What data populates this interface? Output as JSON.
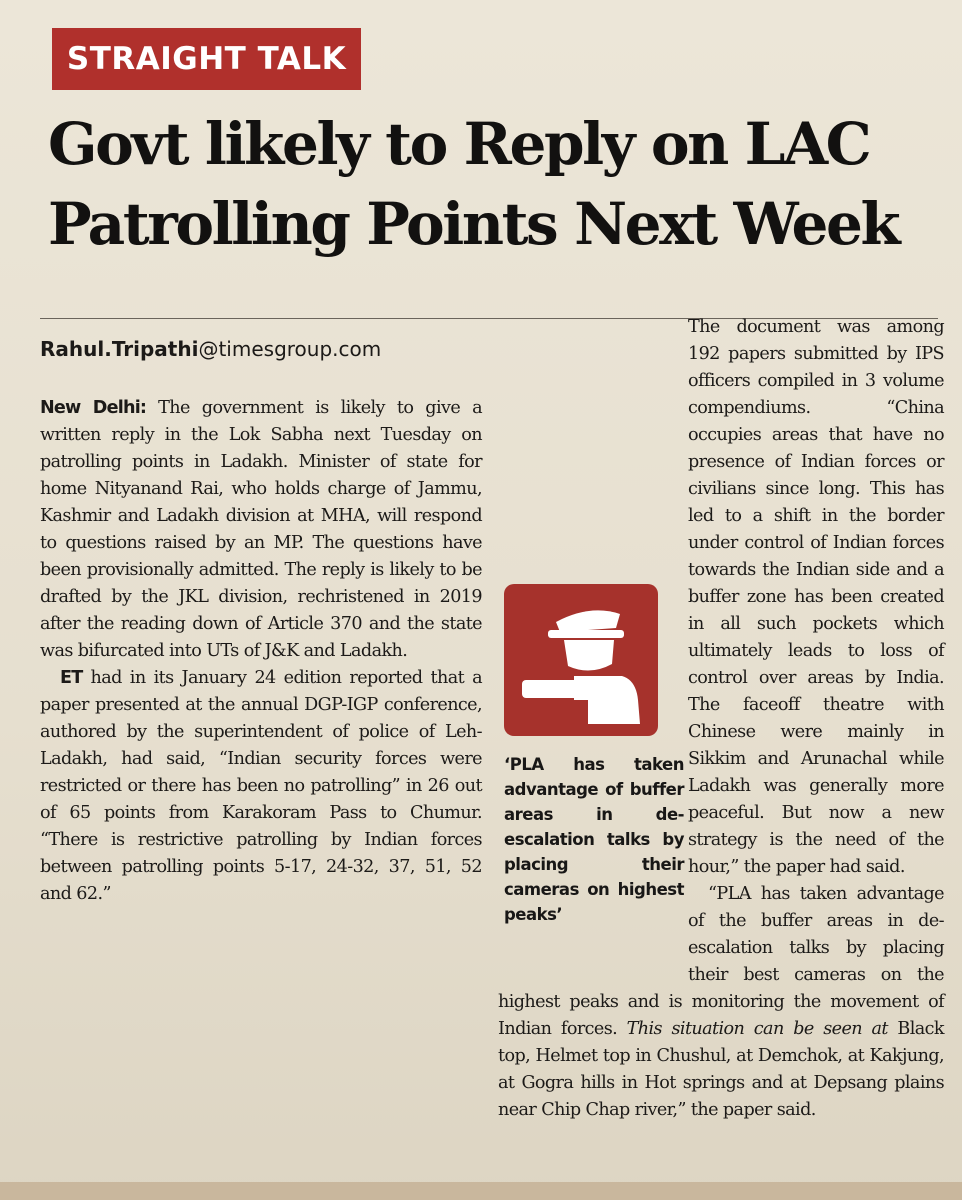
{
  "kicker": "STRAIGHT TALK",
  "headline": {
    "line1": "Govt likely to Reply on LAC",
    "line2": "Patrolling Points Next Week"
  },
  "byline": {
    "name": "Rahul.Tripathi",
    "domain": "@timesgroup.com"
  },
  "article": {
    "dateline": "New Delhi:",
    "p1": "The government is likely to give a written reply in the Lok Sabha next Tuesday on patrolling points in Ladakh. Minister of state for home Nityanand Rai, who holds charge of Jammu, Kashmir and Ladakh division at MHA, will respond to questions raised by an MP. The questions have been provisionally admitted. The reply is likely to be drafted by the JKL division, rechristened in 2019 after the reading down of Article 370 and the state was bifurcated into UTs of J&K and Ladakh.",
    "p2_lead": "ET",
    "p2": " had in its January 24 edition reported that a paper presented at the annual DGP-IGP conference, authored by the superintendent of police of Leh-Ladakh, had said, “Indian security forces were restricted or there has been no patrolling” in 26 out of 65 points from Karakoram Pass to Chumur. “There is restrictive patrolling by Indian forces between patrolling points 5-17, 24-32, 37, 51, 52 and 62.”",
    "p3": "The document was among 192 papers submitted by IPS officers compiled in 3 volume compendiums. “China occupies areas that have no presence of Indian forces or civilians since long. This has led to a shift in the border under control of Indian forces towards the Indian side and a buffer zone has been created in all such pockets which ultimately leads to loss of control over areas by India. The faceoff theatre with Chinese were mainly in Sikkim and Arunachal while Ladakh was generally more peaceful. But now a new strategy is the need of the hour,” the paper had said.",
    "p4_a": "“PLA has taken advantage of the buffer areas in de-escalation talks by placing their best cameras on the highest peaks and is monitoring the movement of Indian forces.",
    "p4_b": " This situation can be seen at",
    "p4_c": " Black top, Helmet top in Chushul, at Demchok, at Kakjung, at Gogra hills in Hot springs and at Depsang plains near Chip Chap river,” the paper said."
  },
  "pull_quote": "‘PLA has taken advantage of buffer areas in de-escalation talks by placing their cameras on highest peaks’",
  "icon": "soldier-pointing-icon",
  "colors": {
    "accent_red": "#b0302c",
    "icon_red": "#a6322c",
    "paper": "#e9e2d4"
  }
}
